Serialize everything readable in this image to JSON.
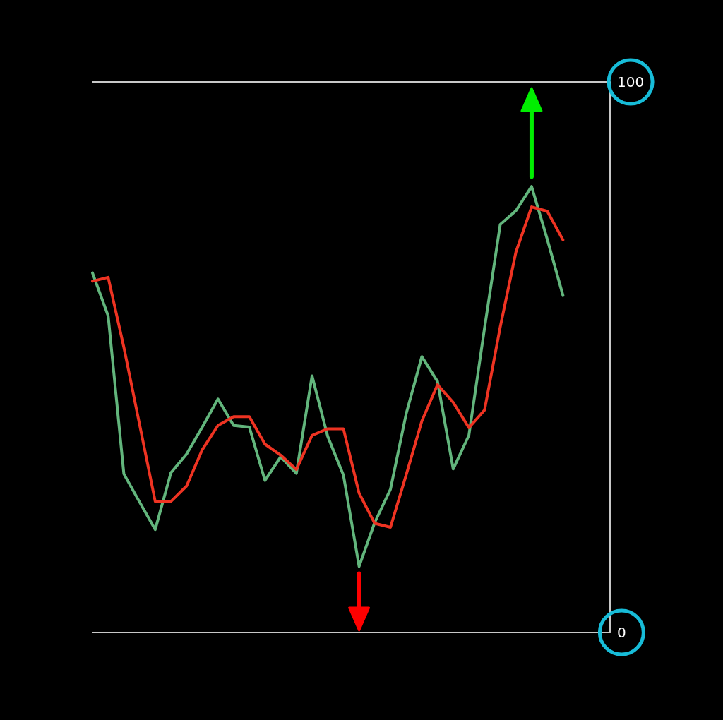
{
  "chart_data": {
    "type": "line",
    "categories": [
      null,
      null,
      null,
      null,
      null,
      null,
      null,
      null,
      null,
      null,
      null,
      null,
      null,
      null,
      null,
      null,
      null,
      null,
      null,
      null,
      null,
      null,
      null,
      null,
      null,
      null,
      null,
      null,
      null,
      null,
      null,
      null,
      null,
      null
    ],
    "series": [
      {
        "color": "#62b57c",
        "values": [
          65.3,
          57.5,
          28.8,
          23.7,
          18.7,
          29.0,
          32.4,
          37.3,
          42.4,
          37.6,
          37.3,
          27.6,
          31.9,
          28.9,
          46.6,
          35.6,
          28.6,
          12.0,
          20.0,
          26.0,
          39.7,
          50.1,
          45.6,
          29.7,
          35.8,
          55.3,
          74.1,
          76.6,
          81.0,
          71.4,
          61.2,
          null,
          null,
          null
        ]
      },
      {
        "color": "#ee3322",
        "values": [
          63.8,
          64.5,
          51.8,
          37.8,
          23.8,
          23.8,
          26.6,
          33.2,
          37.6,
          39.2,
          39.2,
          34.2,
          32.2,
          29.6,
          35.8,
          37.0,
          37.0,
          25.3,
          19.8,
          19.1,
          28.6,
          38.4,
          45.0,
          41.8,
          37.2,
          40.4,
          55.5,
          69.1,
          77.3,
          76.5,
          71.3,
          null,
          null,
          null
        ]
      }
    ],
    "ylim": [
      0,
      100
    ],
    "yticks": [
      0,
      100
    ],
    "grid": "y",
    "tick_labels": "y"
  }
}
